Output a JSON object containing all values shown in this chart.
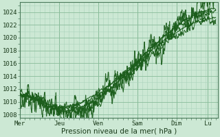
{
  "title": "",
  "xlabel": "Pression niveau de la mer( hPa )",
  "bg_color": "#cce8d4",
  "plot_bg_color": "#cce8d4",
  "grid_major_color": "#88bb99",
  "grid_minor_color": "#aad4bb",
  "line_color": "#1a5c1a",
  "ylim": [
    1007.5,
    1025.5
  ],
  "yticks": [
    1008,
    1010,
    1012,
    1014,
    1016,
    1018,
    1020,
    1022,
    1024
  ],
  "x_days": [
    "Mer",
    "Jeu",
    "Ven",
    "Sam",
    "Dim",
    "Lu"
  ],
  "x_day_positions": [
    0.0,
    1.0,
    2.0,
    3.0,
    4.0,
    4.8
  ],
  "xlim": [
    0.0,
    5.05
  ],
  "x_total": 5.0,
  "figsize": [
    3.2,
    2.0
  ],
  "dpi": 100
}
